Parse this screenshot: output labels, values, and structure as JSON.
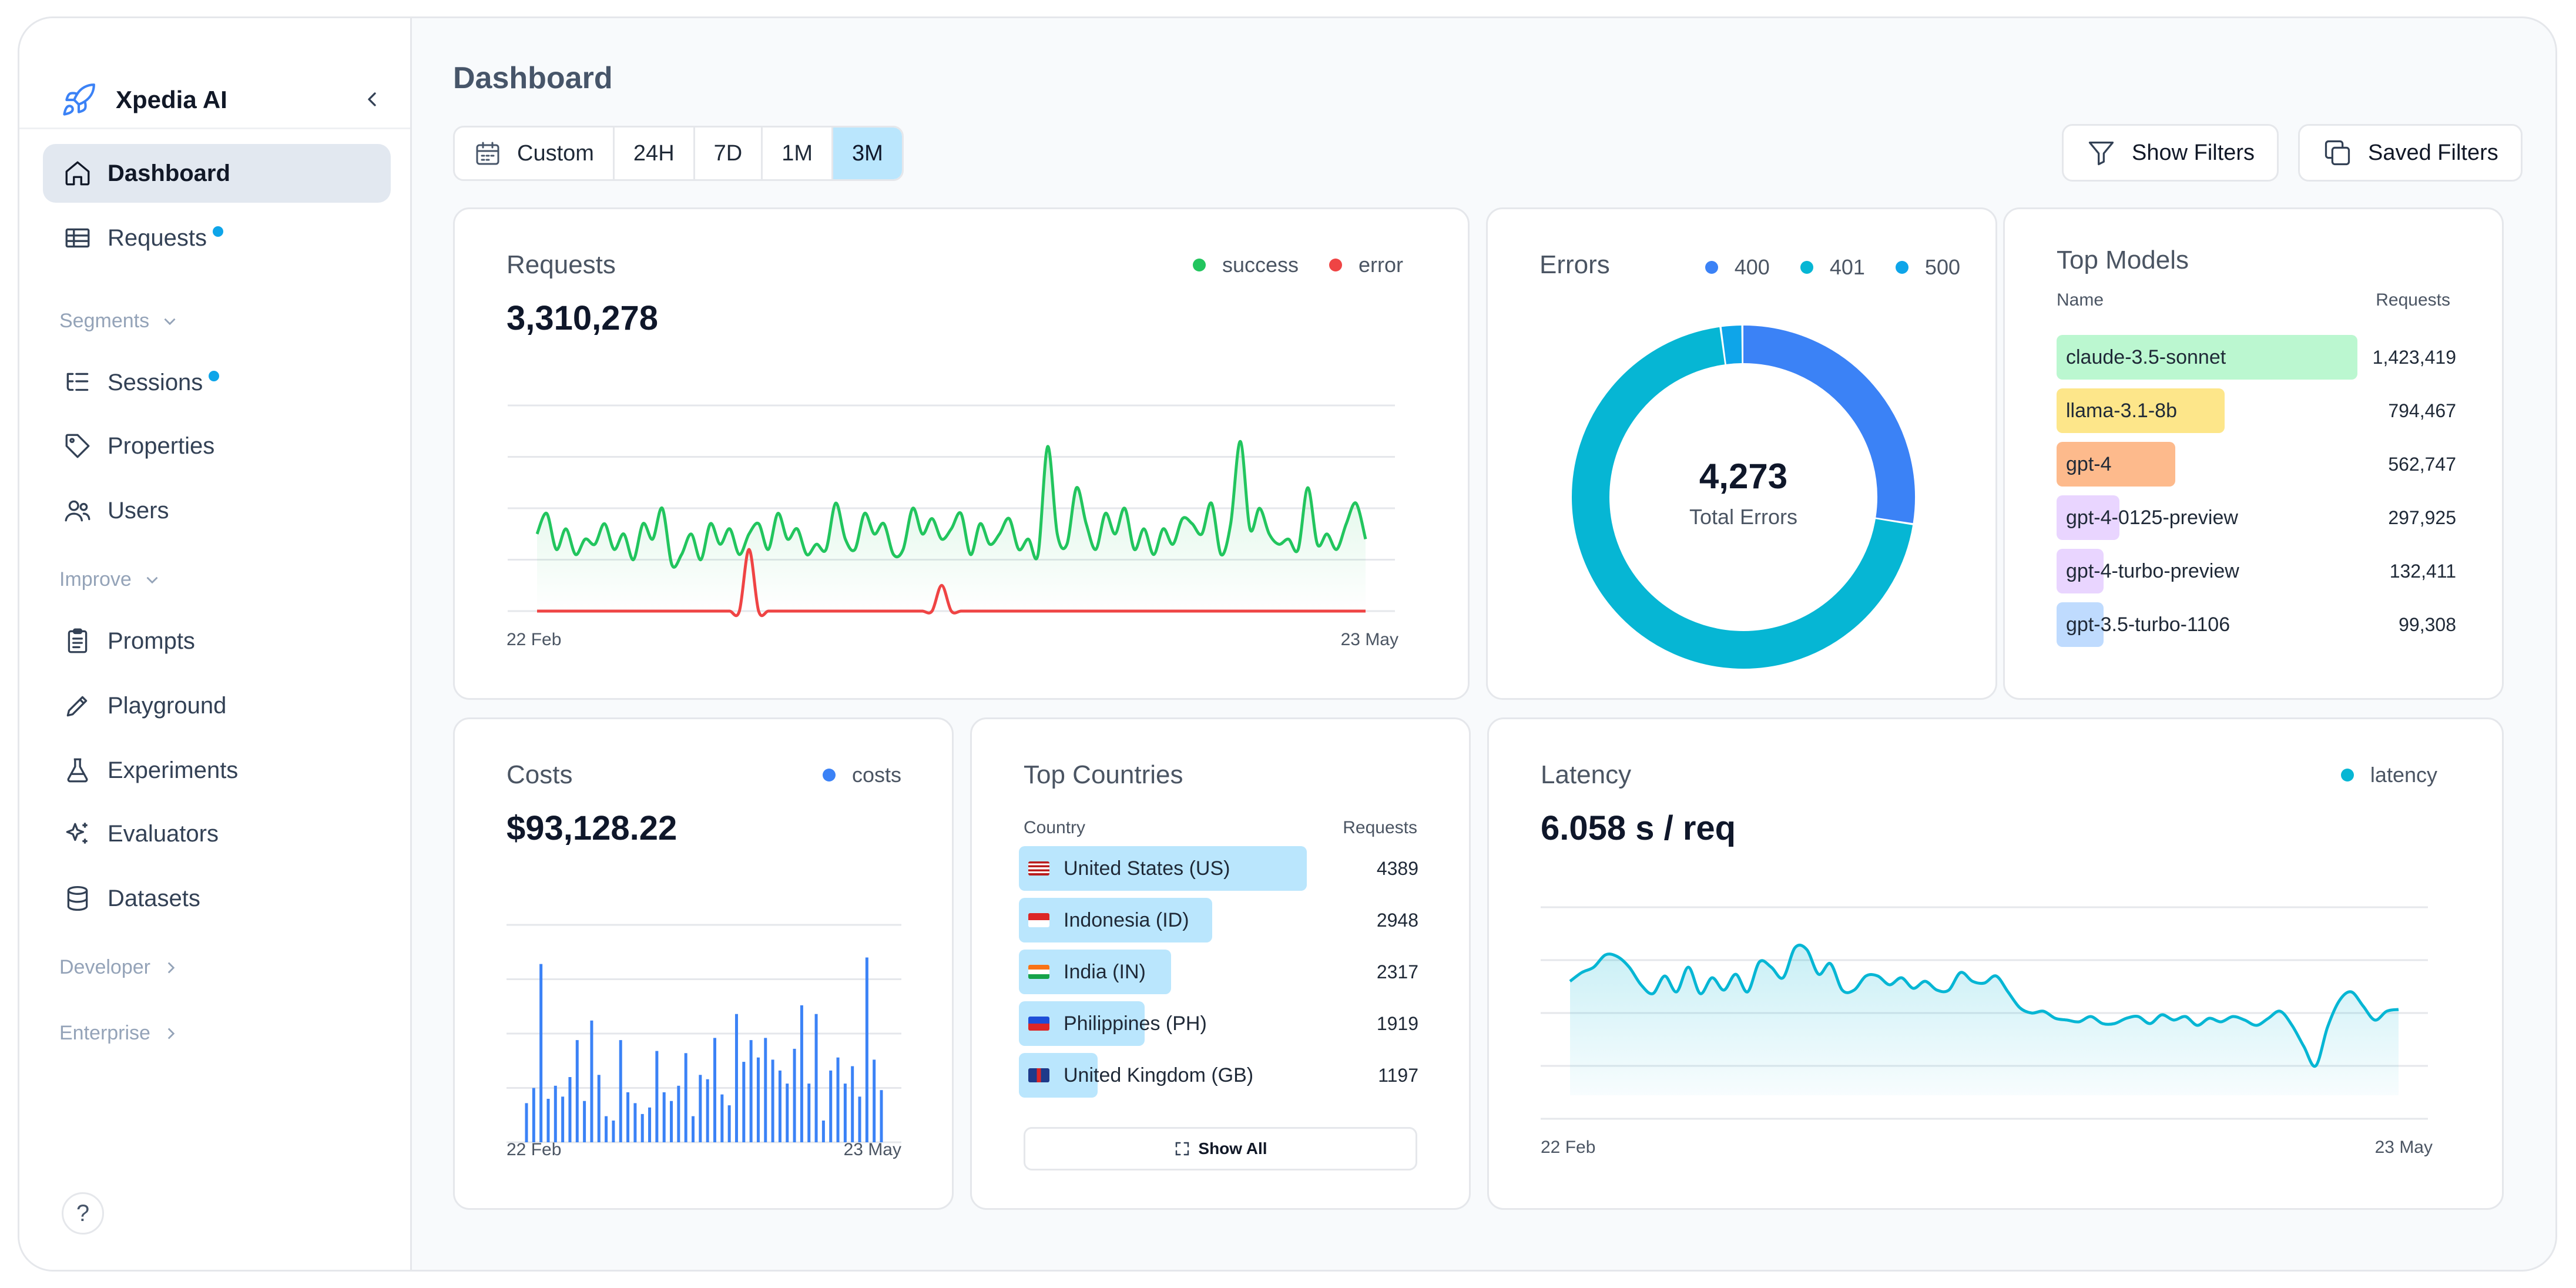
{
  "app": {
    "name": "Xpedia AI"
  },
  "sidebar": {
    "items": [
      {
        "label": "Dashboard"
      },
      {
        "label": "Requests"
      },
      {
        "label": "Segments"
      },
      {
        "label": "Sessions"
      },
      {
        "label": "Properties"
      },
      {
        "label": "Users"
      },
      {
        "label": "Improve"
      },
      {
        "label": "Prompts"
      },
      {
        "label": "Playground"
      },
      {
        "label": "Experiments"
      },
      {
        "label": "Evaluators"
      },
      {
        "label": "Datasets"
      },
      {
        "label": "Developer"
      },
      {
        "label": "Enterprise"
      }
    ],
    "help": "?"
  },
  "header": {
    "title": "Dashboard",
    "ranges": [
      "Custom",
      "24H",
      "7D",
      "1M",
      "3M"
    ],
    "selected_range": "3M",
    "show_filters": "Show Filters",
    "saved_filters": "Saved Filters"
  },
  "colors": {
    "success": "#22c55e",
    "error": "#ef4444",
    "e400": "#3b82f6",
    "e401": "#06b6d4",
    "e500": "#0ea5e9",
    "costs": "#3b82f6",
    "latency": "#06b6d4",
    "accent": "#bae6fd"
  },
  "requests": {
    "title": "Requests",
    "total": "3,310,278",
    "legend": [
      "success",
      "error"
    ],
    "x_start": "22 Feb",
    "x_end": "23 May"
  },
  "errors": {
    "title": "Errors",
    "legend": [
      "400",
      "401",
      "500"
    ],
    "total": "4,273",
    "total_label": "Total Errors"
  },
  "top_models": {
    "title": "Top Models",
    "col_name": "Name",
    "col_requests": "Requests",
    "rows": [
      {
        "name": "claude-3.5-sonnet",
        "value": "1,423,419",
        "n": 1423419,
        "color": "#bbf7d0"
      },
      {
        "name": "llama-3.1-8b",
        "value": "794,467",
        "n": 794467,
        "color": "#fde68a"
      },
      {
        "name": "gpt-4",
        "value": "562,747",
        "n": 562747,
        "color": "#fdba8c"
      },
      {
        "name": "gpt-4-0125-preview",
        "value": "297,925",
        "n": 297925,
        "color": "#e9d5ff"
      },
      {
        "name": "gpt-4-turbo-preview",
        "value": "132,411",
        "n": 132411,
        "color": "#e9d5ff"
      },
      {
        "name": "gpt-3.5-turbo-1106",
        "value": "99,308",
        "n": 99308,
        "color": "#bfdbfe"
      }
    ]
  },
  "costs": {
    "title": "Costs",
    "total": "$93,128.22",
    "legend": "costs",
    "x_start": "22 Feb",
    "x_end": "23 May"
  },
  "top_countries": {
    "title": "Top Countries",
    "col_country": "Country",
    "col_requests": "Requests",
    "rows": [
      {
        "name": "United States (US)",
        "value": "4389",
        "n": 4389,
        "flag": "us"
      },
      {
        "name": "Indonesia (ID)",
        "value": "2948",
        "n": 2948,
        "flag": "id"
      },
      {
        "name": "India (IN)",
        "value": "2317",
        "n": 2317,
        "flag": "in"
      },
      {
        "name": "Philippines (PH)",
        "value": "1919",
        "n": 1919,
        "flag": "ph"
      },
      {
        "name": "United Kingdom (GB)",
        "value": "1197",
        "n": 1197,
        "flag": "gb"
      }
    ],
    "show_all": "Show All"
  },
  "latency": {
    "title": "Latency",
    "value": "6.058 s / req",
    "legend": "latency",
    "x_start": "22 Feb",
    "x_end": "23 May"
  },
  "chart_data": [
    {
      "type": "line",
      "title": "Requests",
      "series": [
        {
          "name": "success",
          "values": [
            150,
            190,
            120,
            160,
            110,
            140,
            130,
            170,
            120,
            150,
            100,
            170,
            140,
            200,
            90,
            110,
            150,
            100,
            170,
            130,
            160,
            110,
            150,
            170,
            120,
            190,
            140,
            160,
            110,
            130,
            120,
            210,
            140,
            120,
            190,
            150,
            170,
            110,
            120,
            200,
            150,
            180,
            140,
            160,
            190,
            110,
            170,
            130,
            150,
            180,
            120,
            140,
            110,
            320,
            150,
            130,
            240,
            170,
            120,
            190,
            150,
            200,
            120,
            160,
            110,
            160,
            130,
            180,
            170,
            150,
            210,
            110,
            170,
            330,
            160,
            200,
            150,
            130,
            140,
            120,
            240,
            130,
            150,
            120,
            170,
            210,
            140
          ]
        },
        {
          "name": "error",
          "values": [
            0,
            0,
            0,
            0,
            0,
            0,
            0,
            0,
            0,
            0,
            0,
            0,
            0,
            0,
            0,
            0,
            0,
            0,
            0,
            0,
            0,
            0,
            120,
            0,
            0,
            0,
            0,
            0,
            0,
            0,
            0,
            0,
            0,
            0,
            0,
            0,
            0,
            0,
            0,
            0,
            0,
            0,
            50,
            0,
            0,
            0,
            0,
            0,
            0,
            0,
            0,
            0,
            0,
            0,
            0,
            0,
            0,
            0,
            0,
            0,
            0,
            0,
            0,
            0,
            0,
            0,
            0,
            0,
            0,
            0,
            0,
            0,
            0,
            0,
            0,
            0,
            0,
            0,
            0,
            0,
            0,
            0,
            0,
            0,
            0,
            0,
            0
          ]
        }
      ],
      "ylim": [
        0,
        400
      ]
    },
    {
      "type": "pie",
      "title": "Errors",
      "categories": [
        "400",
        "401",
        "500"
      ],
      "values": [
        1180,
        3006,
        87
      ]
    },
    {
      "type": "bar",
      "title": "Top Models",
      "categories": [
        "claude-3.5-sonnet",
        "llama-3.1-8b",
        "gpt-4",
        "gpt-4-0125-preview",
        "gpt-4-turbo-preview",
        "gpt-3.5-turbo-1106"
      ],
      "values": [
        1423419,
        794467,
        562747,
        297925,
        132411,
        99308
      ]
    },
    {
      "type": "bar",
      "title": "Costs",
      "values": [
        180,
        250,
        820,
        200,
        260,
        210,
        300,
        470,
        190,
        560,
        310,
        120,
        100,
        470,
        230,
        180,
        130,
        160,
        420,
        230,
        190,
        260,
        410,
        120,
        310,
        290,
        480,
        220,
        170,
        590,
        370,
        470,
        390,
        480,
        380,
        330,
        270,
        430,
        630,
        270,
        590,
        100,
        330,
        390,
        270,
        350,
        210,
        850,
        380,
        240
      ],
      "ylim": [
        0,
        1000
      ]
    },
    {
      "type": "bar",
      "title": "Top Countries",
      "categories": [
        "United States (US)",
        "Indonesia (ID)",
        "India (IN)",
        "Philippines (PH)",
        "United Kingdom (GB)"
      ],
      "values": [
        4389,
        2948,
        2317,
        1919,
        1197
      ]
    },
    {
      "type": "area",
      "title": "Latency",
      "values": [
        7.8,
        8.3,
        8.6,
        9.3,
        9.2,
        8.6,
        7.6,
        7.1,
        8.1,
        7.2,
        8.6,
        7.1,
        8.0,
        7.3,
        8.2,
        7.2,
        8.9,
        8.6,
        8.0,
        9.7,
        9.6,
        8.2,
        8.8,
        7.3,
        7.3,
        8.1,
        8.1,
        7.6,
        8.0,
        7.4,
        7.8,
        7.3,
        7.3,
        8.3,
        7.8,
        7.7,
        8.1,
        7.2,
        6.3,
        6.0,
        6.1,
        5.7,
        5.6,
        5.5,
        5.8,
        5.4,
        5.4,
        5.7,
        5.8,
        5.4,
        5.9,
        5.6,
        5.8,
        5.3,
        5.7,
        5.5,
        5.8,
        5.6,
        5.3,
        5.7,
        6.1,
        5.3,
        4.1,
        3.0,
        5.2,
        6.7,
        7.2,
        6.4,
        5.6,
        6.1,
        6.2
      ],
      "ylim": [
        0,
        12
      ]
    }
  ]
}
